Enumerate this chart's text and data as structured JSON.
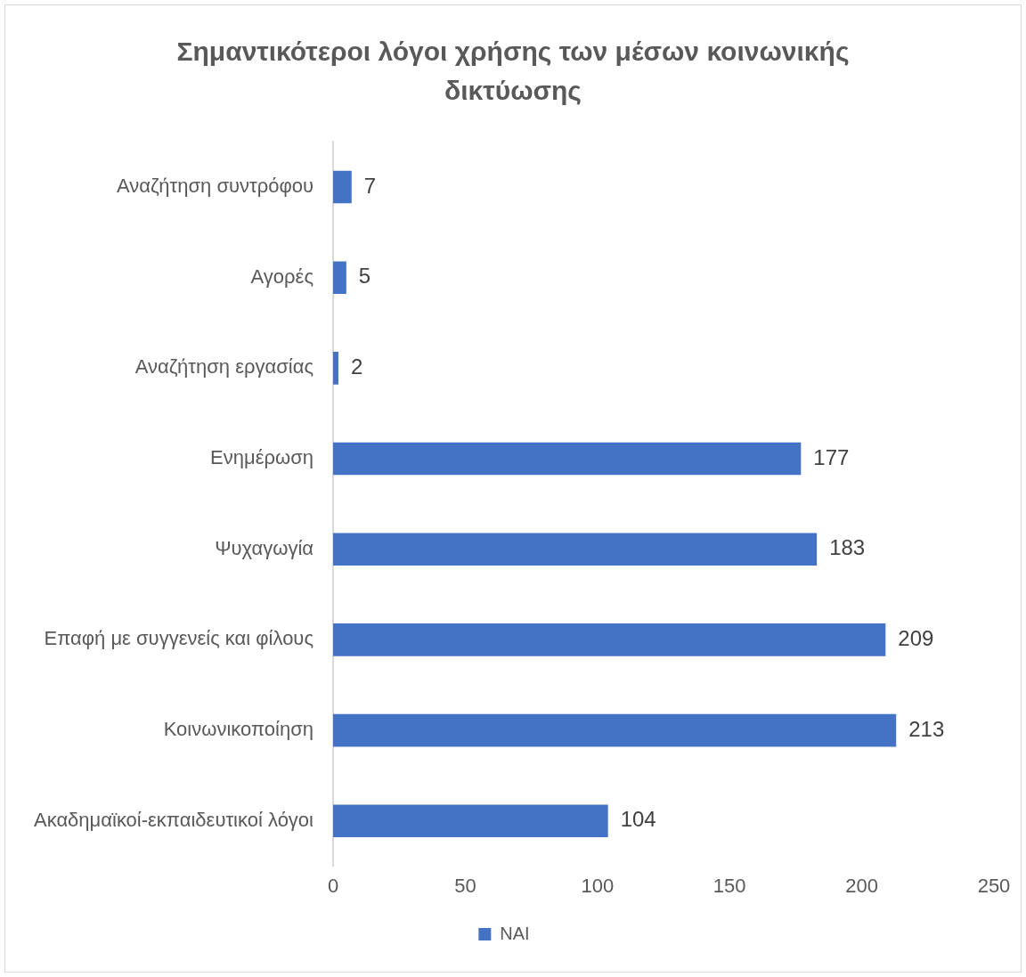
{
  "chart_data": {
    "type": "bar",
    "orientation": "horizontal",
    "title": "Σημαντικότεροι λόγοι χρήσης των μέσων κοινωνικής δικτύωσης",
    "categories": [
      "Αναζήτηση συντρόφου",
      "Αγορές",
      "Αναζήτηση εργασίας",
      "Ενημέρωση",
      "Ψυχαγωγία",
      "Επαφή με συγγενείς και φίλους",
      "Κοινωνικοποίηση",
      "Ακαδημαϊκοί-εκπαιδευτικοί λόγοι"
    ],
    "series": [
      {
        "name": "ΝΑΙ",
        "color": "#4472c4",
        "values": [
          7,
          5,
          2,
          177,
          183,
          209,
          213,
          104
        ]
      }
    ],
    "xlim": [
      0,
      250
    ],
    "xticks": [
      0,
      50,
      100,
      150,
      200,
      250
    ],
    "grid": false,
    "legend": "bottom",
    "data_labels": true
  }
}
